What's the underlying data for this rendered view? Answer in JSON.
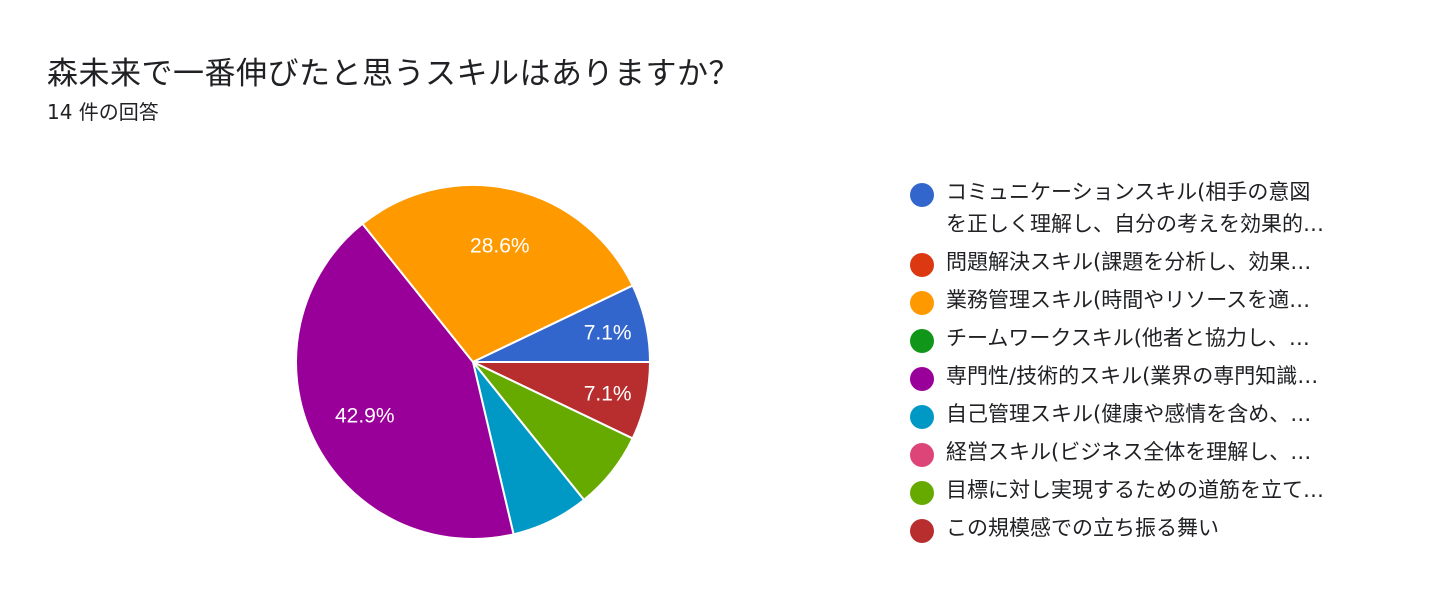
{
  "title": "森未来で一番伸びたと思うスキルはありますか？",
  "subtitle": "14 件の回答",
  "chart_data": {
    "type": "pie",
    "title": "森未来で一番伸びたと思うスキルはありますか？",
    "total_responses": 14,
    "slices": [
      {
        "label": "コミュニケーションスキル(相手の意図\nを正しく理解し、自分の考えを効果的…",
        "value": 7.1,
        "display": "7.1%",
        "color": "#3366cc"
      },
      {
        "label": "問題解決スキル(課題を分析し、効果…",
        "value": 0,
        "display": "",
        "color": "#dc3912"
      },
      {
        "label": "業務管理スキル(時間やリソースを適…",
        "value": 28.6,
        "display": "28.6%",
        "color": "#ff9900"
      },
      {
        "label": "チームワークスキル(他者と協力し、…",
        "value": 0,
        "display": "",
        "color": "#109618"
      },
      {
        "label": "専門性/技術的スキル(業界の専門知識…",
        "value": 42.9,
        "display": "42.9%",
        "color": "#990099"
      },
      {
        "label": "自己管理スキル(健康や感情を含め、…",
        "value": 7.1,
        "display": "",
        "color": "#0099c6"
      },
      {
        "label": "経営スキル(ビジネス全体を理解し、…",
        "value": 0,
        "display": "",
        "color": "#dd4477"
      },
      {
        "label": "目標に対し実現するための道筋を立て…",
        "value": 7.1,
        "display": "",
        "color": "#66aa00"
      },
      {
        "label": "この規模感での立ち振る舞い",
        "value": 7.1,
        "display": "7.1%",
        "color": "#b82e2e"
      }
    ],
    "legend_position": "right"
  }
}
